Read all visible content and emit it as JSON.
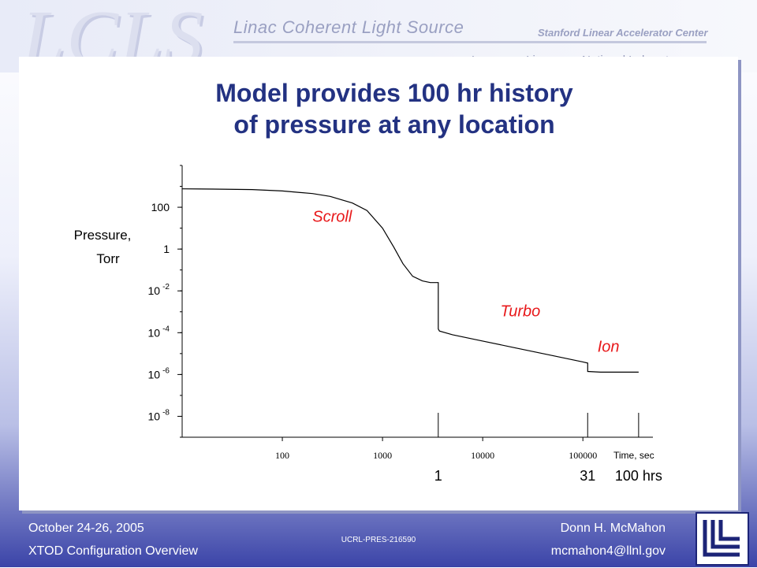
{
  "header": {
    "logo": "LCLS",
    "title": "Linac Coherent Light Source",
    "org1": "Stanford Linear Accelerator Center",
    "org2": "Lawrence Livermore National Laboratory"
  },
  "slide": {
    "title_line1": "Model provides 100 hr history",
    "title_line2": "of pressure at any location"
  },
  "chart_data": {
    "type": "line",
    "title": "",
    "ylabel_line1": "Pressure,",
    "ylabel_line2": "Torr",
    "xlabel": "Time, sec",
    "x_scale": "log",
    "y_scale": "log",
    "xlim": [
      10,
      500000
    ],
    "ylim": [
      1e-09,
      10000
    ],
    "grid": false,
    "y_ticks": [
      {
        "value": 100,
        "base": "100",
        "exp": ""
      },
      {
        "value": 1,
        "base": "1",
        "exp": ""
      },
      {
        "value": 0.01,
        "base": "10",
        "exp": "-2"
      },
      {
        "value": 0.0001,
        "base": "10",
        "exp": "-4"
      },
      {
        "value": 1e-06,
        "base": "10",
        "exp": "-6"
      },
      {
        "value": 1e-08,
        "base": "10",
        "exp": "-8"
      }
    ],
    "x_ticks": [
      {
        "value": 100,
        "label": "100"
      },
      {
        "value": 1000,
        "label": "1000"
      },
      {
        "value": 10000,
        "label": "10000"
      },
      {
        "value": 100000,
        "label": "100000"
      }
    ],
    "hour_markers": [
      {
        "value": 3600,
        "label": "1"
      },
      {
        "value": 111600,
        "label": "31"
      },
      {
        "value": 360000,
        "label": "100 hrs"
      }
    ],
    "series": [
      {
        "x": [
          10,
          20,
          50,
          100,
          200,
          300,
          500,
          700,
          1000,
          1300,
          1600,
          2000,
          2500,
          3000,
          3600,
          3600,
          3700,
          5000,
          10000,
          20000,
          50000,
          100000,
          111600,
          111600,
          150000,
          200000,
          300000,
          360000
        ],
        "y": [
          760,
          740,
          700,
          600,
          450,
          330,
          160,
          70,
          10,
          1.2,
          0.2,
          0.05,
          0.03,
          0.025,
          0.025,
          0.00015,
          0.00012,
          8e-05,
          4e-05,
          2e-05,
          8e-06,
          4e-06,
          3.5e-06,
          1.4e-06,
          1.3e-06,
          1.3e-06,
          1.3e-06,
          1.3e-06
        ]
      }
    ],
    "annotations": [
      {
        "text": "Scroll",
        "x": 200,
        "y": 20
      },
      {
        "text": "Turbo",
        "x": 15000,
        "y": 0.0006
      },
      {
        "text": "Ion",
        "x": 140000,
        "y": 1.2e-05
      }
    ],
    "colors": {
      "line": "#000000",
      "annotation": "#e8191b"
    }
  },
  "footer": {
    "date": "October 24-26, 2005",
    "talk": "XTOD Configuration Overview",
    "doc_id": "UCRL-PRES-216590",
    "author": "Donn H. McMahon",
    "email": "mcmahon4@llnl.gov"
  }
}
